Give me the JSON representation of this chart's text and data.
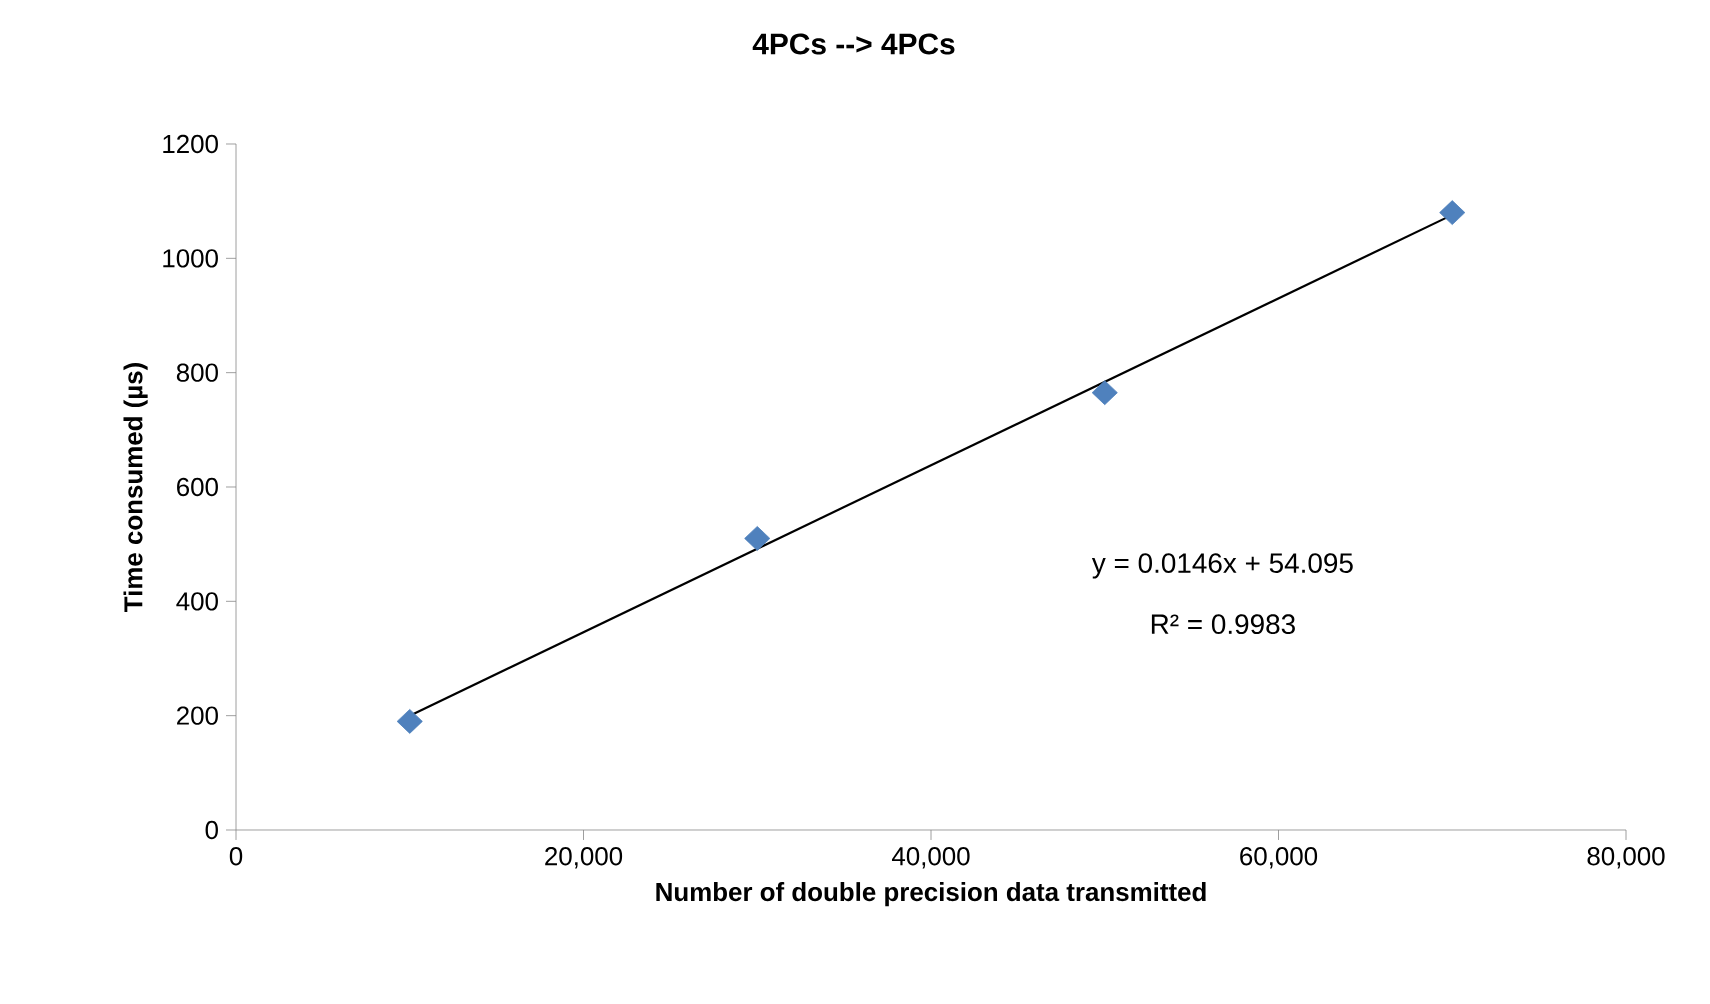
{
  "chart_data": {
    "type": "scatter",
    "title": "4PCs --> 4PCs",
    "xlabel": "Number of double precision  data transmitted",
    "ylabel": "Time consumed  (µs)",
    "xlim": [
      0,
      80000
    ],
    "ylim": [
      0,
      1200
    ],
    "xticks": [
      0,
      {
        "value": 20000,
        "label": "20,000"
      },
      {
        "value": 40000,
        "label": "40,000"
      },
      {
        "value": 60000,
        "label": "60,000"
      },
      {
        "value": 80000,
        "label": "80,000"
      }
    ],
    "yticks": [
      0,
      200,
      400,
      600,
      800,
      1000,
      1200
    ],
    "grid": false,
    "series": [
      {
        "marker": "diamond",
        "color": "#4f81bd",
        "x": [
          10000,
          30000,
          50000,
          70000
        ],
        "values": [
          190,
          510,
          765,
          1080
        ]
      },
      {
        "type": "line",
        "marker": "none",
        "line_style": "solid",
        "color": "#000000",
        "x": [
          10000,
          70000
        ],
        "values": [
          200,
          1076
        ]
      }
    ],
    "annotations": [
      "y = 0.0146x + 54.095",
      "R² = 0.9983"
    ]
  }
}
